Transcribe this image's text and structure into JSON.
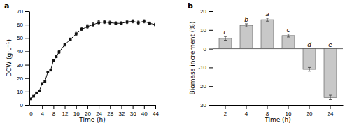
{
  "chart_data": [
    {
      "type": "line",
      "title": "a",
      "marker": "square",
      "color": "#111111",
      "x": [
        0,
        1,
        2,
        3,
        4,
        5,
        6,
        7,
        8,
        9,
        10,
        12,
        14,
        16,
        18,
        20,
        22,
        24,
        26,
        28,
        30,
        32,
        34,
        36,
        38,
        40,
        42,
        44
      ],
      "values": [
        4.5,
        6.5,
        9.0,
        10.5,
        16.0,
        17.5,
        24.5,
        26.0,
        33.0,
        36.0,
        39.5,
        45.0,
        49.0,
        53.0,
        56.5,
        58.5,
        60.0,
        61.5,
        62.0,
        61.5,
        61.0,
        61.0,
        62.0,
        62.5,
        61.5,
        62.5,
        61.0,
        60.0
      ],
      "errors": [
        0.3,
        0.3,
        0.4,
        0.5,
        0.5,
        0.4,
        0.5,
        0.6,
        0.8,
        0.8,
        1.0,
        1.0,
        1.0,
        1.2,
        1.2,
        1.5,
        1.5,
        1.5,
        1.2,
        1.2,
        1.2,
        1.2,
        1.2,
        1.2,
        1.2,
        1.2,
        1.0,
        1.0
      ],
      "x_label": "Time (h)",
      "y_label": "DCW (g·L⁻¹)",
      "xlim": [
        -0.5,
        44
      ],
      "xticks": [
        0,
        4,
        8,
        12,
        16,
        20,
        24,
        28,
        32,
        36,
        40,
        44
      ],
      "ylim": [
        0,
        70
      ],
      "yticks": [
        0,
        10,
        20,
        30,
        40,
        50,
        60,
        70
      ]
    },
    {
      "type": "bar",
      "title": "b",
      "color": "#c8c8c8",
      "categories": [
        "2",
        "4",
        "8",
        "16",
        "20",
        "24"
      ],
      "values": [
        5.5,
        12.5,
        15.5,
        7.0,
        -11.0,
        -26.0
      ],
      "errors": [
        1.0,
        0.8,
        0.8,
        0.8,
        1.0,
        1.2
      ],
      "annotations": [
        "c",
        "b",
        "a",
        "c",
        "d",
        "e"
      ],
      "x_label": "Time (h)",
      "y_label": "Biomass increment (%)",
      "ylim": [
        -30,
        20
      ],
      "yticks": [
        -30,
        -20,
        -10,
        0,
        10,
        20
      ]
    }
  ]
}
